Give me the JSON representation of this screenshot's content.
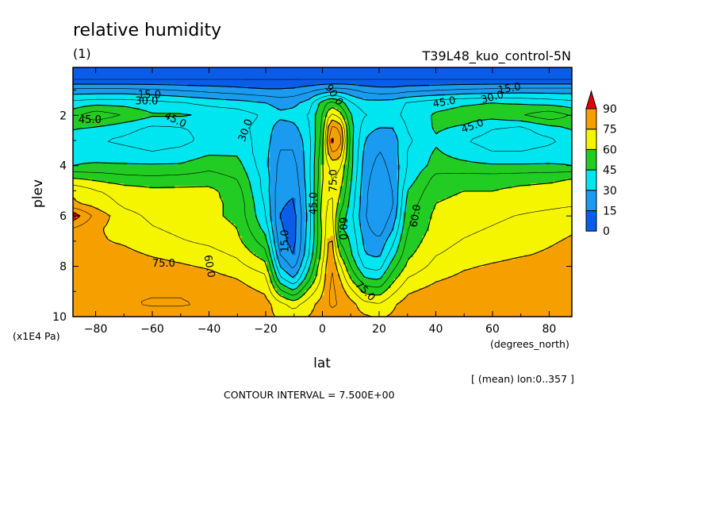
{
  "chart_data": {
    "type": "heatmap",
    "title": "relative humidity",
    "subtitle_left": "(1)",
    "subtitle_right": "T39L48_kuo_control-5N",
    "xlabel": "lat",
    "ylabel": "plev",
    "x_units": "(degrees_north)",
    "y_units": "(x1E4 Pa)",
    "xlim": [
      -88,
      88
    ],
    "ylim": [
      10,
      0.1
    ],
    "x_ticks": [
      -80,
      -60,
      -40,
      -20,
      0,
      20,
      40,
      60,
      80
    ],
    "y_ticks": [
      2,
      4,
      6,
      8,
      10
    ],
    "colorbar": {
      "levels": [
        0,
        15,
        30,
        45,
        60,
        75,
        90
      ],
      "colors": [
        "#0a5de8",
        "#1a9bf0",
        "#00e6f0",
        "#22cc22",
        "#f5f500",
        "#f5a000",
        "#e60000"
      ]
    },
    "contour_labels": [
      "15.0",
      "30.0",
      "45.0",
      "60.0",
      "75.0",
      "90.0"
    ],
    "contour_interval_text": "CONTOUR INTERVAL = 7.500E+00",
    "mean_note": "[ (mean) lon:0..357 ]",
    "grid_lat": [
      -88,
      -80,
      -70,
      -60,
      -50,
      -40,
      -30,
      -20,
      -15,
      -10,
      -5,
      0,
      3,
      6,
      10,
      15,
      20,
      25,
      30,
      40,
      50,
      60,
      70,
      80,
      88
    ],
    "grid_plev": [
      0.3,
      0.6,
      1.0,
      1.5,
      2.0,
      2.5,
      3.0,
      3.5,
      4.0,
      4.5,
      5.0,
      5.5,
      6.0,
      6.5,
      7.0,
      7.5,
      8.0,
      8.5,
      9.0,
      9.5,
      10.0
    ],
    "values": [
      [
        2,
        2,
        2,
        2,
        2,
        2,
        2,
        2,
        2,
        2,
        2,
        2,
        2,
        2,
        2,
        2,
        2,
        2,
        2,
        2,
        2,
        2,
        2,
        2,
        2
      ],
      [
        8,
        8,
        8,
        8,
        8,
        8,
        8,
        8,
        8,
        8,
        8,
        8,
        8,
        8,
        8,
        8,
        8,
        8,
        8,
        8,
        8,
        8,
        8,
        8,
        8
      ],
      [
        25,
        25,
        25,
        24,
        22,
        20,
        18,
        16,
        16,
        17,
        20,
        24,
        26,
        26,
        24,
        20,
        18,
        18,
        20,
        22,
        24,
        25,
        26,
        26,
        26
      ],
      [
        40,
        42,
        42,
        40,
        38,
        35,
        33,
        30,
        27,
        28,
        33,
        48,
        55,
        50,
        38,
        33,
        33,
        34,
        38,
        42,
        44,
        45,
        44,
        42,
        40
      ],
      [
        50,
        58,
        52,
        46,
        46,
        44,
        42,
        36,
        32,
        33,
        38,
        52,
        70,
        65,
        45,
        38,
        35,
        35,
        40,
        46,
        48,
        48,
        52,
        58,
        52
      ],
      [
        46,
        44,
        40,
        36,
        37,
        40,
        40,
        34,
        26,
        28,
        36,
        54,
        85,
        82,
        48,
        33,
        30,
        30,
        38,
        46,
        44,
        38,
        36,
        42,
        46
      ],
      [
        40,
        38,
        36,
        34,
        35,
        40,
        42,
        33,
        24,
        24,
        34,
        56,
        92,
        88,
        48,
        30,
        24,
        27,
        36,
        44,
        38,
        34,
        34,
        36,
        40
      ],
      [
        43,
        42,
        40,
        38,
        40,
        44,
        44,
        32,
        22,
        22,
        34,
        58,
        82,
        80,
        48,
        28,
        22,
        26,
        38,
        46,
        42,
        38,
        38,
        40,
        43
      ],
      [
        45,
        46,
        46,
        46,
        46,
        50,
        48,
        32,
        20,
        20,
        34,
        60,
        70,
        70,
        48,
        26,
        20,
        25,
        38,
        48,
        47,
        46,
        46,
        46,
        45
      ],
      [
        60,
        58,
        55,
        54,
        55,
        56,
        52,
        34,
        19,
        18,
        34,
        60,
        68,
        66,
        46,
        25,
        18,
        24,
        40,
        55,
        56,
        56,
        57,
        58,
        60
      ],
      [
        74,
        68,
        64,
        62,
        62,
        62,
        56,
        34,
        17,
        16,
        33,
        62,
        68,
        62,
        44,
        24,
        17,
        23,
        45,
        58,
        60,
        60,
        62,
        63,
        64
      ],
      [
        76,
        72,
        66,
        64,
        63,
        62,
        58,
        36,
        16,
        14,
        33,
        63,
        70,
        58,
        42,
        24,
        15,
        22,
        48,
        60,
        62,
        62,
        64,
        65,
        66
      ],
      [
        95,
        80,
        70,
        66,
        64,
        62,
        58,
        38,
        15,
        12,
        32,
        64,
        72,
        52,
        40,
        23,
        15,
        25,
        50,
        62,
        64,
        66,
        68,
        70,
        72
      ],
      [
        82,
        76,
        72,
        68,
        66,
        64,
        60,
        42,
        16,
        12,
        33,
        62,
        76,
        46,
        42,
        25,
        18,
        30,
        52,
        63,
        66,
        68,
        70,
        72,
        74
      ],
      [
        78,
        76,
        74,
        70,
        68,
        66,
        62,
        48,
        18,
        12,
        34,
        62,
        80,
        52,
        44,
        28,
        24,
        36,
        55,
        65,
        68,
        70,
        72,
        74,
        76
      ],
      [
        77,
        78,
        77,
        74,
        72,
        70,
        66,
        55,
        22,
        14,
        36,
        64,
        82,
        60,
        46,
        30,
        28,
        42,
        58,
        67,
        70,
        72,
        74,
        76,
        78
      ],
      [
        78,
        80,
        80,
        78,
        76,
        74,
        70,
        63,
        30,
        20,
        42,
        68,
        84,
        70,
        52,
        36,
        34,
        50,
        62,
        70,
        74,
        76,
        78,
        78,
        79
      ],
      [
        78,
        80,
        82,
        81,
        80,
        78,
        75,
        70,
        40,
        30,
        50,
        70,
        85,
        76,
        60,
        46,
        44,
        58,
        68,
        74,
        77,
        78,
        80,
        80,
        80
      ],
      [
        78,
        80,
        82,
        82,
        82,
        80,
        78,
        74,
        55,
        46,
        62,
        74,
        85,
        80,
        70,
        58,
        56,
        66,
        74,
        78,
        80,
        80,
        81,
        82,
        82
      ],
      [
        79,
        80,
        82,
        83,
        83,
        82,
        80,
        78,
        70,
        64,
        72,
        78,
        84,
        82,
        78,
        70,
        68,
        74,
        78,
        80,
        82,
        82,
        82,
        82,
        82
      ],
      [
        80,
        80,
        80,
        80,
        80,
        79,
        78,
        77,
        74,
        72,
        75,
        78,
        80,
        79,
        78,
        76,
        74,
        76,
        78,
        79,
        80,
        80,
        80,
        80,
        80
      ]
    ]
  }
}
